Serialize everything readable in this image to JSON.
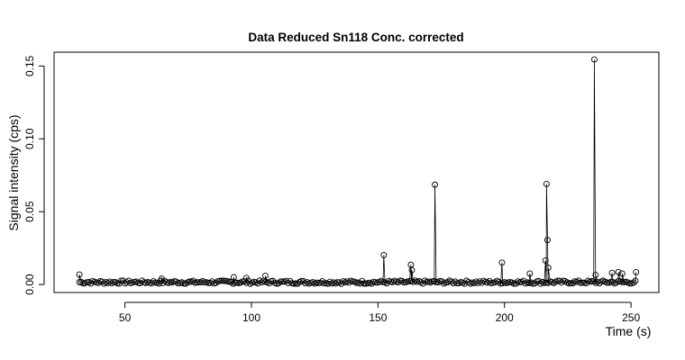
{
  "chart_data": {
    "type": "scatter",
    "title": "Data Reduced Sn118 Conc. corrected",
    "xlabel": "Time (s)",
    "ylabel": "Signal intensity (cps)",
    "xlim": [
      22,
      261
    ],
    "ylim": [
      -0.0055,
      0.1595
    ],
    "xticks": [
      50,
      100,
      150,
      200,
      250
    ],
    "yticks": [
      0.0,
      0.05,
      0.1,
      0.15
    ],
    "xtick_labels": [
      "50",
      "100",
      "150",
      "200",
      "250"
    ],
    "ytick_labels": [
      "0.00",
      "0.05",
      "0.10",
      "0.15"
    ],
    "grid": false,
    "legend": "none",
    "marker": "open-circle",
    "connected": true,
    "baseline": {
      "x_start": 32,
      "x_end": 252,
      "x_step": 0.75,
      "y_level": 0.0016
    },
    "points": [
      {
        "x": 32.0,
        "y": 0.0068
      },
      {
        "x": 64.5,
        "y": 0.004
      },
      {
        "x": 93.0,
        "y": 0.005
      },
      {
        "x": 98.0,
        "y": 0.0045
      },
      {
        "x": 105.5,
        "y": 0.006
      },
      {
        "x": 152.3,
        "y": 0.0202
      },
      {
        "x": 163.0,
        "y": 0.0135
      },
      {
        "x": 163.4,
        "y": 0.0098
      },
      {
        "x": 172.5,
        "y": 0.0685
      },
      {
        "x": 199.0,
        "y": 0.015
      },
      {
        "x": 210.0,
        "y": 0.0075
      },
      {
        "x": 216.2,
        "y": 0.0165
      },
      {
        "x": 216.6,
        "y": 0.069
      },
      {
        "x": 217.0,
        "y": 0.0305
      },
      {
        "x": 217.3,
        "y": 0.0115
      },
      {
        "x": 235.5,
        "y": 0.1545
      },
      {
        "x": 236.0,
        "y": 0.0065
      },
      {
        "x": 242.5,
        "y": 0.008
      },
      {
        "x": 245.0,
        "y": 0.0085
      },
      {
        "x": 246.5,
        "y": 0.0075
      },
      {
        "x": 252.0,
        "y": 0.0085
      }
    ]
  }
}
